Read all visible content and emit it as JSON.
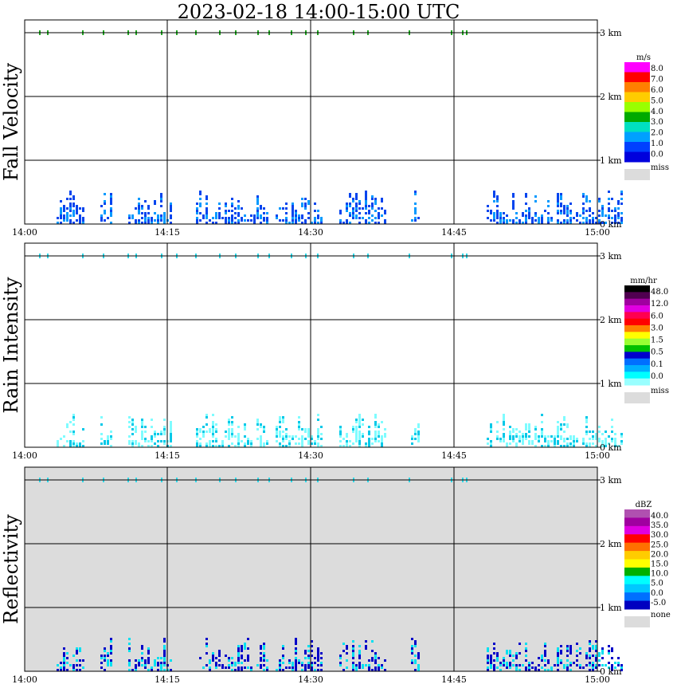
{
  "title": "2023-02-18   14:00-15:00 UTC",
  "chart_data": [
    {
      "type": "heatmap",
      "panel": "fall-velocity",
      "ylabel": "Fall Velocity",
      "x_ticks": [
        "14:00",
        "14:15",
        "14:30",
        "14:45",
        "15:00"
      ],
      "y_ticks": [
        "0 km",
        "1 km",
        "2 km",
        "3 km"
      ],
      "xlim": [
        "14:00",
        "15:00"
      ],
      "ylim_km": [
        0,
        3.2
      ],
      "grid": true,
      "background": "#ffffff",
      "colorbar": {
        "units": "m/s",
        "labels": [
          "8.0",
          "7.0",
          "6.0",
          "5.0",
          "4.0",
          "3.0",
          "2.0",
          "1.0",
          "0.0"
        ],
        "colors": [
          "#ff00ff",
          "#ff0000",
          "#ff7f00",
          "#ffcc00",
          "#99ff00",
          "#00aa00",
          "#00e0c0",
          "#00a0ff",
          "#0040ff",
          "#0000dd"
        ],
        "missing_label": "miss",
        "missing_color": "#dcdcdc"
      },
      "echo_top_km": 0.8,
      "cloud_color": "#0044ee",
      "core_color": "#0099ff"
    },
    {
      "type": "heatmap",
      "panel": "rain-intensity",
      "ylabel": "Rain Intensity",
      "x_ticks": [
        "14:00",
        "14:15",
        "14:30",
        "14:45",
        "15:00"
      ],
      "y_ticks": [
        "0 km",
        "1 km",
        "2 km",
        "3 km"
      ],
      "xlim": [
        "14:00",
        "15:00"
      ],
      "ylim_km": [
        0,
        3.2
      ],
      "grid": true,
      "background": "#ffffff",
      "colorbar": {
        "units": "mm/hr",
        "labels": [
          "48.0",
          "12.0",
          "6.0",
          "3.0",
          "1.5",
          "0.5",
          "0.1",
          "0.0"
        ],
        "colors": [
          "#000000",
          "#500050",
          "#a000a0",
          "#e000e0",
          "#ff0050",
          "#ff0000",
          "#ff8000",
          "#ffff00",
          "#99ff33",
          "#00c000",
          "#0000cc",
          "#0070ff",
          "#00b0ff",
          "#00ffff",
          "#99ffff"
        ],
        "missing_label": "miss",
        "missing_color": "#dcdcdc"
      },
      "echo_top_km": 0.8,
      "cloud_color": "#7ffcff",
      "core_color": "#00c8e8"
    },
    {
      "type": "heatmap",
      "panel": "reflectivity",
      "ylabel": "Reflectivity",
      "x_ticks": [
        "14:00",
        "14:15",
        "14:30",
        "14:45",
        "15:00"
      ],
      "y_ticks": [
        "0 km",
        "1 km",
        "2 km",
        "3 km"
      ],
      "xlim": [
        "14:00",
        "15:00"
      ],
      "ylim_km": [
        0,
        3.2
      ],
      "grid": true,
      "background": "#dcdcdc",
      "colorbar": {
        "units": "dBZ",
        "labels": [
          "40.0",
          "35.0",
          "30.0",
          "25.0",
          "20.0",
          "15.0",
          "10.0",
          "5.0",
          "0.0",
          "-5.0"
        ],
        "colors": [
          "#b050b0",
          "#a000a0",
          "#e000e0",
          "#ff0000",
          "#ff7000",
          "#ffcc00",
          "#ffff00",
          "#00b000",
          "#00ffff",
          "#00c8ff",
          "#0070ff",
          "#0000c0"
        ],
        "missing_label": "none",
        "missing_color": "#dcdcdc"
      },
      "echo_top_km": 0.8,
      "cloud_color": "#0000c8",
      "core_color": "#00e0f0"
    }
  ]
}
